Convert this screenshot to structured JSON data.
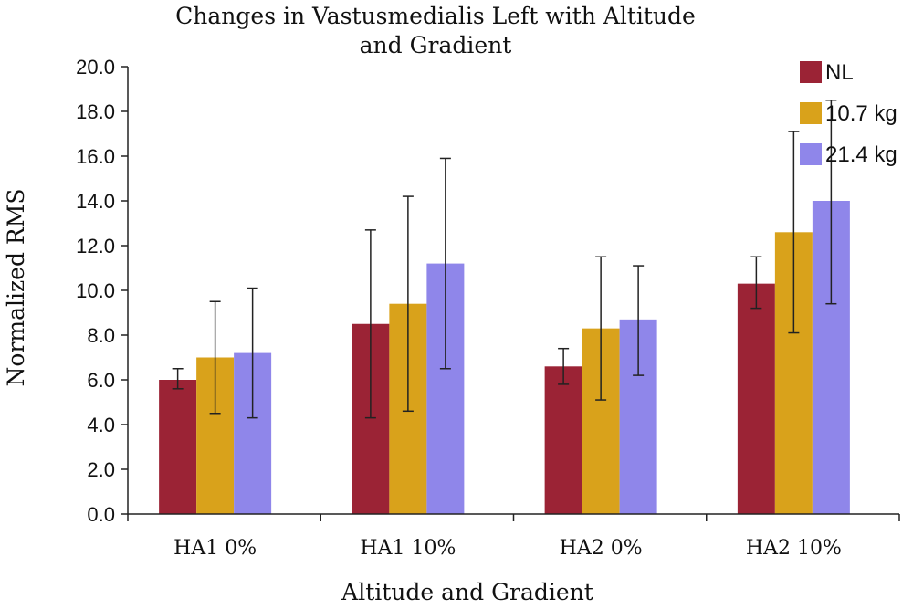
{
  "chart_data": {
    "type": "bar",
    "title_lines": [
      "Changes in Vastusmedialis Left with Altitude",
      "and Gradient"
    ],
    "xlabel": "Altitude and Gradient",
    "ylabel": "Normalized RMS",
    "ylim": [
      0,
      20
    ],
    "ytick_step": 2,
    "ytick_labels": [
      "0.0",
      "2.0",
      "4.0",
      "6.0",
      "8.0",
      "10.0",
      "12.0",
      "14.0",
      "16.0",
      "18.0",
      "20.0"
    ],
    "categories": [
      "HA1 0%",
      "HA1 10%",
      "HA2 0%",
      "HA2 10%"
    ],
    "grid": false,
    "legend_position": "top-right",
    "series": [
      {
        "name": "NL",
        "color": "#9b2335",
        "values": [
          6.0,
          8.5,
          6.6,
          10.3
        ],
        "err_low": [
          5.6,
          4.3,
          5.8,
          9.2
        ],
        "err_high": [
          6.5,
          12.7,
          7.4,
          11.5
        ]
      },
      {
        "name": "10.7 kg",
        "color": "#d9a21b",
        "values": [
          7.0,
          9.4,
          8.3,
          12.6
        ],
        "err_low": [
          4.5,
          4.6,
          5.1,
          8.1
        ],
        "err_high": [
          9.5,
          14.2,
          11.5,
          17.1
        ]
      },
      {
        "name": "21.4 kg",
        "color": "#8f86ea",
        "values": [
          7.2,
          11.2,
          8.7,
          14.0
        ],
        "err_low": [
          4.3,
          6.5,
          6.2,
          9.4
        ],
        "err_high": [
          10.1,
          15.9,
          11.1,
          18.5
        ]
      }
    ]
  }
}
